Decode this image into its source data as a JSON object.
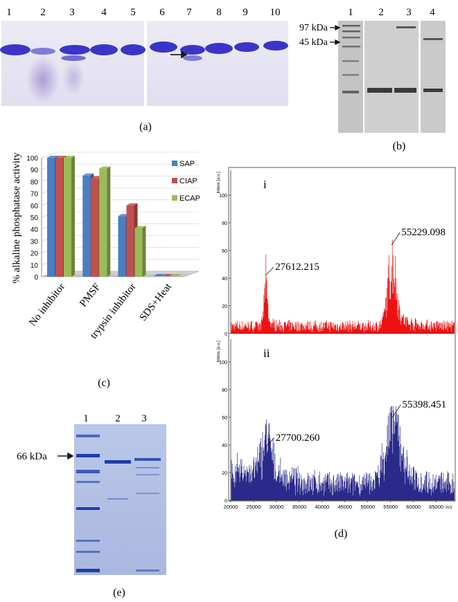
{
  "panel_a": {
    "caption": "(a)",
    "lanes": [
      "1",
      "2",
      "3",
      "4",
      "5",
      "6",
      "7",
      "8",
      "9",
      "10"
    ]
  },
  "panel_b": {
    "caption": "(b)",
    "lanes": [
      "1",
      "2",
      "3",
      "4"
    ],
    "markers": [
      "97 kDa",
      "45 kDa"
    ]
  },
  "panel_c": {
    "caption": "(c)"
  },
  "panel_d": {
    "caption": "(d)",
    "spectra": [
      {
        "label": "i",
        "y_axis": "Intens [a.u.]",
        "peaks": [
          "27612.215",
          "55229.098"
        ],
        "color": "#ee1111"
      },
      {
        "label": "ii",
        "y_axis": "Intens [a.u.]",
        "peaks": [
          "27700.260",
          "55398.451"
        ],
        "color": "#2a2a8a"
      }
    ],
    "y_ticks": [
      "0",
      "20",
      "40",
      "60",
      "80",
      "100"
    ],
    "x_ticks": [
      "20000",
      "25000",
      "30000",
      "35000",
      "40000",
      "45000",
      "50000",
      "55000",
      "60000",
      "65000"
    ],
    "x_unit": "m/z"
  },
  "panel_e": {
    "caption": "(e)",
    "lanes": [
      "1",
      "2",
      "3"
    ],
    "marker": "66 kDa"
  },
  "chart_data": {
    "type": "bar",
    "title": "",
    "ylabel": "% alkaline phosphatase activity",
    "xlabel": "",
    "ylim": [
      0,
      100
    ],
    "yticks": [
      0,
      10,
      20,
      30,
      40,
      50,
      60,
      70,
      80,
      90,
      100
    ],
    "categories": [
      "No inhibitor",
      "PMSF",
      "trypsin inhibitor",
      "SDS+Heat"
    ],
    "series": [
      {
        "name": "SAP",
        "values": [
          100,
          85,
          51,
          0
        ],
        "color": "#4a7fc1"
      },
      {
        "name": "CIAP",
        "values": [
          100,
          83,
          60,
          0
        ],
        "color": "#c0504d"
      },
      {
        "name": "ECAP",
        "values": [
          100,
          91,
          41,
          0
        ],
        "color": "#9bbb59"
      }
    ],
    "legend": "right"
  }
}
